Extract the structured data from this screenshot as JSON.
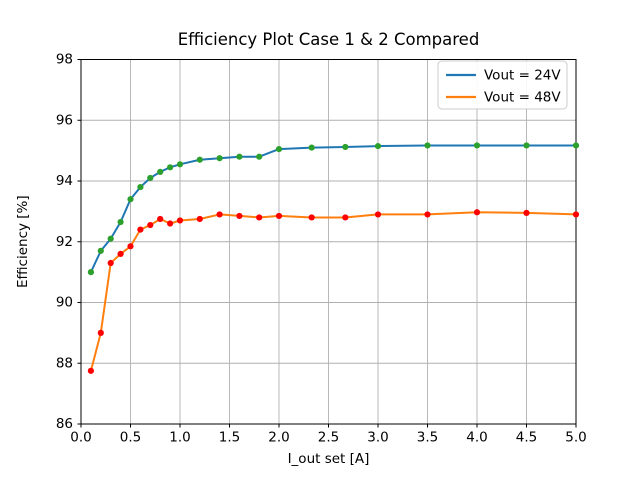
{
  "chart_data": {
    "type": "line",
    "title": "Efficiency Plot Case 1 & 2 Compared",
    "xlabel": "I_out set [A]",
    "ylabel": "Efficiency [%]",
    "xlim": [
      0.0,
      5.0
    ],
    "ylim": [
      86,
      98
    ],
    "xticks": [
      0.0,
      0.5,
      1.0,
      1.5,
      2.0,
      2.5,
      3.0,
      3.5,
      4.0,
      4.5,
      5.0
    ],
    "yticks": [
      86,
      88,
      90,
      92,
      94,
      96,
      98
    ],
    "grid": true,
    "legend": {
      "position": "upper right",
      "entries": [
        "Vout = 24V",
        "Vout = 48V"
      ]
    },
    "x": [
      0.1,
      0.2,
      0.3,
      0.4,
      0.5,
      0.6,
      0.7,
      0.8,
      0.9,
      1.0,
      1.2,
      1.4,
      1.6,
      1.8,
      2.0,
      2.33,
      2.67,
      3.0,
      3.5,
      4.0,
      4.5,
      5.0
    ],
    "series": [
      {
        "name": "Vout = 24V",
        "line_color": "#1f77b4",
        "marker_color": "#2ca02c",
        "values": [
          91.0,
          91.7,
          92.1,
          92.65,
          93.4,
          93.8,
          94.1,
          94.3,
          94.45,
          94.55,
          94.7,
          94.75,
          94.8,
          94.8,
          95.05,
          95.1,
          95.12,
          95.15,
          95.17,
          95.17,
          95.17,
          95.17
        ]
      },
      {
        "name": "Vout = 48V",
        "line_color": "#ff7f0e",
        "marker_color": "#ff0000",
        "values": [
          87.75,
          89.0,
          91.3,
          91.6,
          91.85,
          92.4,
          92.55,
          92.75,
          92.6,
          92.7,
          92.75,
          92.9,
          92.85,
          92.8,
          92.85,
          92.8,
          92.8,
          92.9,
          92.9,
          92.97,
          92.95,
          92.9
        ]
      }
    ]
  },
  "colors": {
    "background": "#ffffff",
    "grid": "#b0b0b0",
    "axes": "#000000",
    "legend_border": "#cccccc"
  }
}
